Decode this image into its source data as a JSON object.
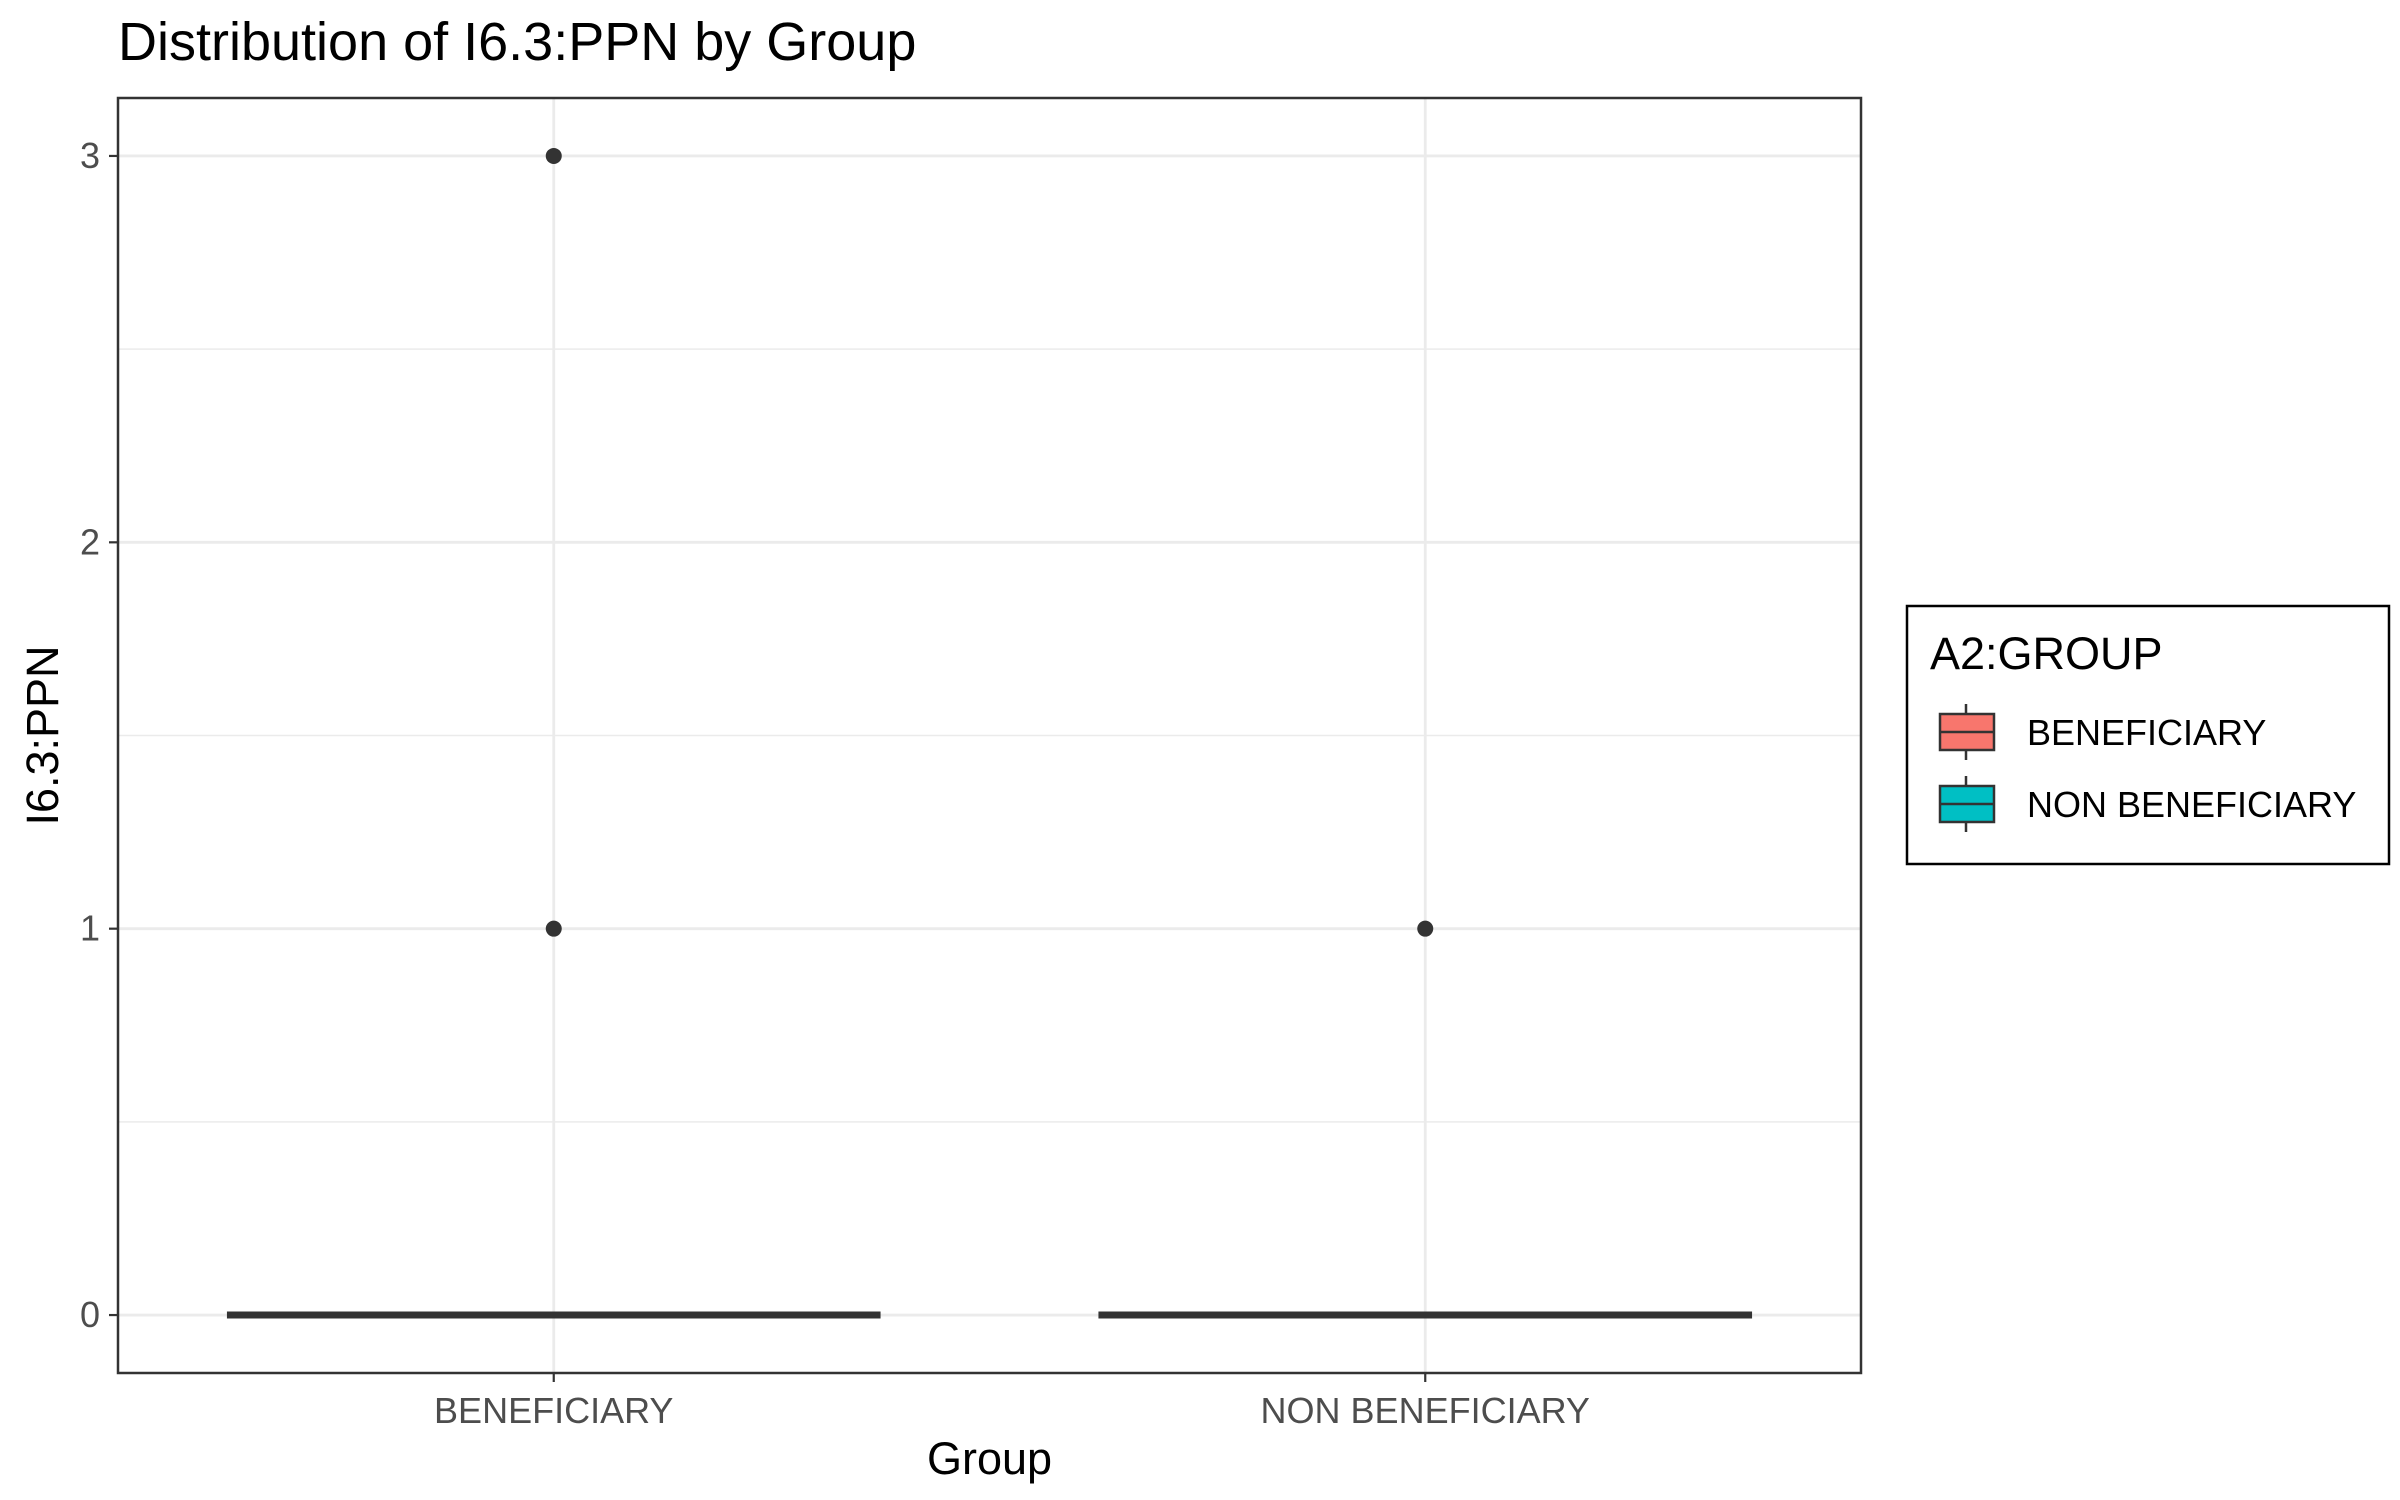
{
  "chart_data": {
    "type": "box",
    "title": "Distribution of I6.3:PPN by Group",
    "xlabel": "Group",
    "ylabel": "I6.3:PPN",
    "ylim": [
      -0.15,
      3.15
    ],
    "y_ticks": [
      0,
      1,
      2,
      3
    ],
    "grid": true,
    "categories": [
      "BENEFICIARY",
      "NON BENEFICIARY"
    ],
    "series": [
      {
        "name": "BENEFICIARY",
        "color": "#F8766D",
        "min": 0,
        "q1": 0,
        "median": 0,
        "q3": 0,
        "max": 0,
        "outliers": [
          1,
          3
        ]
      },
      {
        "name": "NON BENEFICIARY",
        "color": "#00BFC4",
        "min": 0,
        "q1": 0,
        "median": 0,
        "q3": 0,
        "max": 0,
        "outliers": [
          1
        ]
      }
    ],
    "legend": {
      "title": "A2:GROUP",
      "position": "right",
      "entries": [
        "BENEFICIARY",
        "NON BENEFICIARY"
      ]
    }
  }
}
